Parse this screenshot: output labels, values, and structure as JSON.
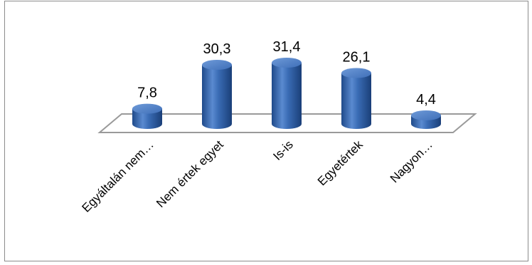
{
  "chart_data": {
    "type": "bar",
    "style": "3d-cylinder",
    "categories": [
      "Egyáltalán nem…",
      "Nem értek egyet",
      "Is-is",
      "Egyetértek",
      "Nagyon…"
    ],
    "values": [
      7.8,
      30.3,
      31.4,
      26.1,
      4.4
    ],
    "value_labels": [
      "7,8",
      "30,3",
      "31,4",
      "26,1",
      "4,4"
    ],
    "ylim": [
      0,
      31.4
    ],
    "grid": false,
    "legend": "none",
    "colors": {
      "bar": "#3a6cb5",
      "bar_dark": "#1f4a8a",
      "bar_light": "#7aa5e0",
      "floor": "#ffffff",
      "floor_stroke": "#9a9a9a"
    }
  }
}
